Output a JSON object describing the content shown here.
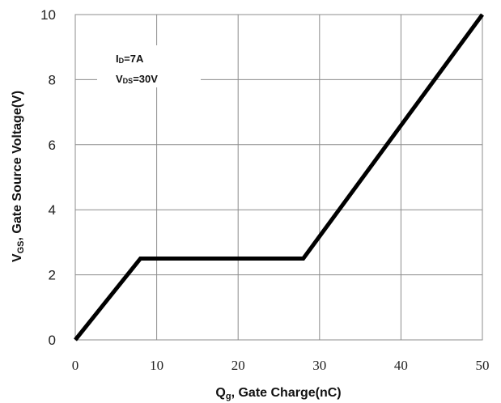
{
  "chart_data": {
    "type": "line",
    "xlabel": {
      "main": "Q",
      "sub": "g",
      "rest": ", Gate Charge(nC)"
    },
    "ylabel": {
      "main": "V",
      "sub": "GS",
      "rest": ", Gate Source Voltage(V)"
    },
    "xlim": [
      0,
      50
    ],
    "ylim": [
      0,
      10
    ],
    "xticks": [
      "0",
      "10",
      "20",
      "30",
      "40",
      "50"
    ],
    "yticks": [
      "0",
      "2",
      "4",
      "6",
      "8",
      "10"
    ],
    "grid": true,
    "annotations": [
      {
        "main": "I",
        "sub": "D",
        "rest": "=7A"
      },
      {
        "main": "V",
        "sub": "DS",
        "rest": "=30V"
      }
    ],
    "series": [
      {
        "color": "#000000",
        "points": [
          [
            0,
            0
          ],
          [
            8,
            2.5
          ],
          [
            28,
            2.5
          ],
          [
            50,
            10
          ]
        ]
      }
    ]
  }
}
